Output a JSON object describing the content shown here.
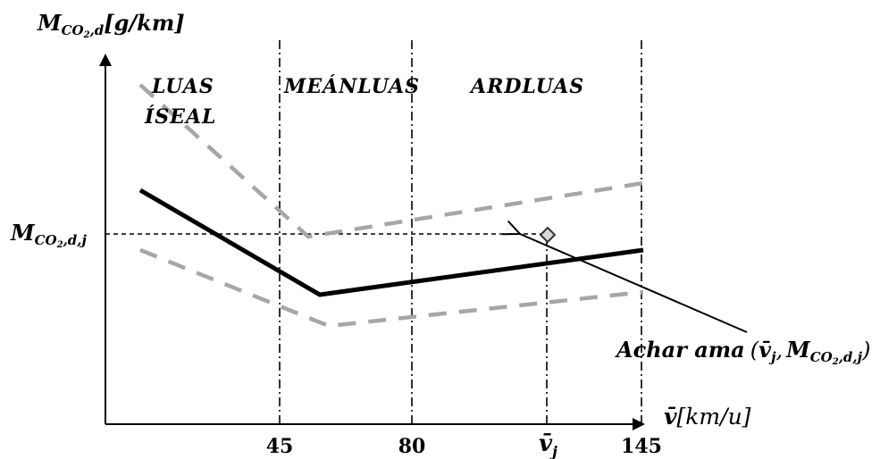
{
  "y_axis": {
    "symbol": "M",
    "subscript": "CO",
    "sub_two": "2",
    "sub_tail": ",d",
    "unit": "[g/km]"
  },
  "x_axis": {
    "symbol": "v̄",
    "unit": "[km/u]",
    "ticks": [
      "45",
      "80",
      "145"
    ],
    "vj_symbol": "v̄",
    "vj_sub": "j"
  },
  "regions": {
    "low_line1": "LUAS",
    "low_line2": "ÍSEAL",
    "mid": "MEÁNLUAS",
    "high": "ARDLUAS"
  },
  "yj_label": {
    "symbol": "M",
    "subscript": "CO",
    "sub_two": "2",
    "sub_tail": ",d,j"
  },
  "annotation": {
    "prefix": "Achar ama",
    "open": "(",
    "v_symbol": "v̄",
    "v_sub": "j",
    "comma": ",",
    "m_symbol": "M",
    "m_sub": "CO",
    "m_two": "2",
    "m_tail": ",d,j",
    "close": ")"
  },
  "colors": {
    "main_curve": "#000000",
    "bound_curves": "#a6a6a6",
    "axis": "#000000"
  }
}
